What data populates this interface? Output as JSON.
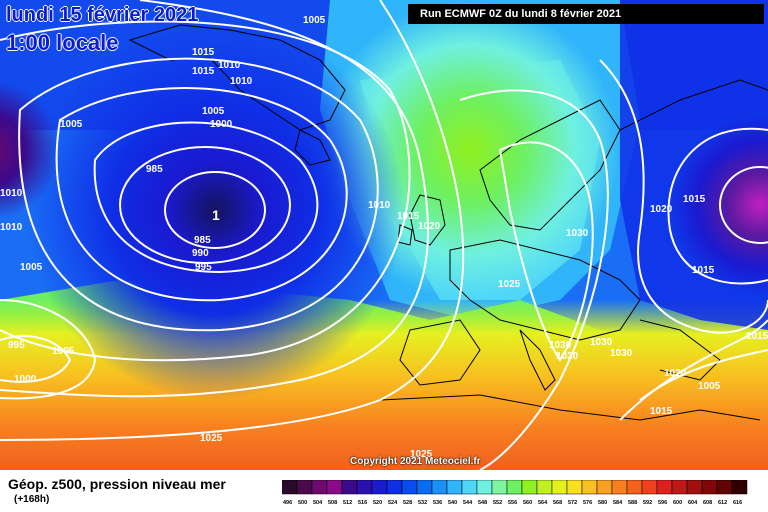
{
  "header": {
    "date": "lundi 15 février 2021",
    "local_time": "1:00 locale",
    "run": "Run ECMWF 0Z du lundi 8 février 2021"
  },
  "footer": {
    "title": "Géop. z500, pression niveau mer",
    "lead_time": "(+168h)",
    "copyright": "Copyright 2021 Meteociel.fr"
  },
  "legend": {
    "values": [
      "496",
      "500",
      "504",
      "508",
      "512",
      "516",
      "520",
      "524",
      "528",
      "532",
      "536",
      "540",
      "544",
      "548",
      "552",
      "556",
      "560",
      "564",
      "568",
      "572",
      "576",
      "580",
      "584",
      "588",
      "592",
      "596",
      "600",
      "604",
      "608",
      "612",
      "616"
    ],
    "colors": [
      "#2a0a2a",
      "#4b0a4b",
      "#6e0a6e",
      "#8a0a8a",
      "#3b0a8c",
      "#2a10b0",
      "#1a1ad0",
      "#0f2ee6",
      "#0a4cf0",
      "#0a6cf5",
      "#1a90f8",
      "#30b4fa",
      "#4fd6f8",
      "#6ff0e0",
      "#7ff5a0",
      "#6ef060",
      "#90f020",
      "#c0f020",
      "#e6f020",
      "#f8e020",
      "#f8c020",
      "#f8a020",
      "#f88020",
      "#f86020",
      "#f04020",
      "#e02020",
      "#c01818",
      "#a01010",
      "#800808",
      "#600404",
      "#300000"
    ]
  },
  "isobars": [
    {
      "id": "L1",
      "text": "1005"
    },
    {
      "id": "L2",
      "text": "1015"
    },
    {
      "id": "L3",
      "text": "1015"
    },
    {
      "id": "L4",
      "text": "1010"
    },
    {
      "id": "L5",
      "text": "1010"
    },
    {
      "id": "L6",
      "text": "1005"
    },
    {
      "id": "L7",
      "text": "1000"
    },
    {
      "id": "L8",
      "text": "1005"
    },
    {
      "id": "L9",
      "text": "985"
    },
    {
      "id": "L10",
      "text": "985"
    },
    {
      "id": "L11",
      "text": "990"
    },
    {
      "id": "L12",
      "text": "995"
    },
    {
      "id": "L13",
      "text": "1005"
    },
    {
      "id": "L14",
      "text": "995"
    },
    {
      "id": "L15",
      "text": "1005"
    },
    {
      "id": "L16",
      "text": "1000"
    },
    {
      "id": "L17",
      "text": "1010"
    },
    {
      "id": "L18",
      "text": "1010"
    },
    {
      "id": "L19",
      "text": "1010"
    },
    {
      "id": "L20",
      "text": "1015"
    },
    {
      "id": "L21",
      "text": "1020"
    },
    {
      "id": "L22",
      "text": "1030"
    },
    {
      "id": "L23",
      "text": "1025"
    },
    {
      "id": "L24",
      "text": "1030"
    },
    {
      "id": "L25",
      "text": "1030"
    },
    {
      "id": "L26",
      "text": "1030"
    },
    {
      "id": "L27",
      "text": "1030"
    },
    {
      "id": "L28",
      "text": "1020"
    },
    {
      "id": "L29",
      "text": "1015"
    },
    {
      "id": "L30",
      "text": "1015"
    },
    {
      "id": "L31",
      "text": "1020"
    },
    {
      "id": "L32",
      "text": "1005"
    },
    {
      "id": "L33",
      "text": "1015"
    },
    {
      "id": "L34",
      "text": "1025"
    },
    {
      "id": "L35",
      "text": "1025"
    },
    {
      "id": "L36",
      "text": "1015"
    }
  ],
  "low_center_label": "1"
}
